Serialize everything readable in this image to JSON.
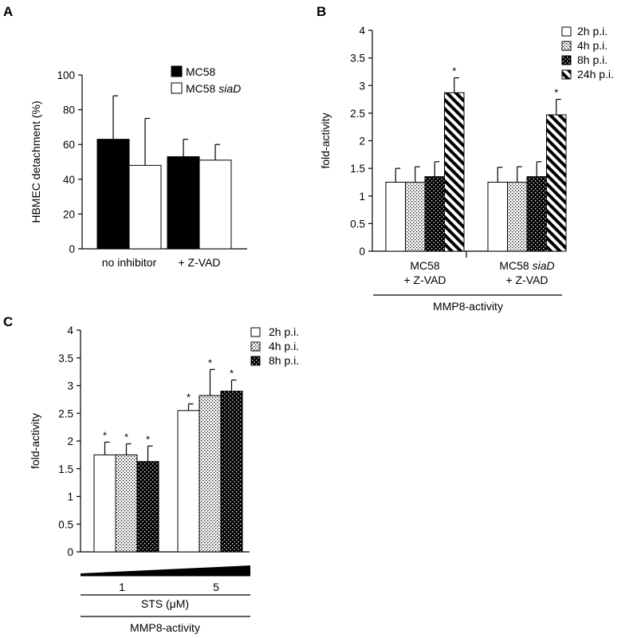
{
  "chart_data": [
    {
      "panel": "A",
      "type": "bar",
      "ylabel": "HBMEC detachment (%)",
      "ylim": [
        0,
        100
      ],
      "yticks": [
        0,
        20,
        40,
        60,
        80,
        100
      ],
      "categories": [
        "no inhibitor",
        "+ Z-VAD"
      ],
      "series": [
        {
          "name": "MC58",
          "legend_parts": [
            {
              "t": "MC58",
              "i": false
            }
          ],
          "fill": "black",
          "values": [
            63,
            53
          ],
          "errors": [
            25,
            10
          ]
        },
        {
          "name": "MC58 siaD",
          "legend_parts": [
            {
              "t": "MC58 ",
              "i": false
            },
            {
              "t": "siaD",
              "i": true
            }
          ],
          "fill": "white",
          "values": [
            48,
            51
          ],
          "errors": [
            27,
            9
          ]
        }
      ],
      "legend_position": "top-right"
    },
    {
      "panel": "B",
      "type": "bar",
      "ylabel": "fold-activity",
      "ylim": [
        0,
        4
      ],
      "yticks": [
        "0",
        "0.5",
        "1",
        "1.5",
        "2",
        "2.5",
        "3",
        "3.5",
        "4"
      ],
      "categories": [
        {
          "lines": [
            [
              {
                "t": "MC58",
                "i": false
              }
            ],
            [
              {
                "t": "+ Z-VAD",
                "i": false
              }
            ]
          ]
        },
        {
          "lines": [
            [
              {
                "t": "MC58 ",
                "i": false
              },
              {
                "t": "siaD",
                "i": true
              }
            ],
            [
              {
                "t": "+ Z-VAD",
                "i": false
              }
            ]
          ]
        }
      ],
      "category_names": [
        "MC58 + Z-VAD",
        "MC58 siaD + Z-VAD"
      ],
      "footer": "MMP8-activity",
      "series": [
        {
          "name": "2h p.i.",
          "fill": "white",
          "values": [
            1.25,
            1.25
          ],
          "errors": [
            0.25,
            0.27
          ],
          "stars": [
            false,
            false
          ]
        },
        {
          "name": "4h p.i.",
          "fill": "dots-light",
          "values": [
            1.25,
            1.25
          ],
          "errors": [
            0.28,
            0.28
          ],
          "stars": [
            false,
            false
          ]
        },
        {
          "name": "8h p.i.",
          "fill": "dots-dark",
          "values": [
            1.35,
            1.35
          ],
          "errors": [
            0.27,
            0.27
          ],
          "stars": [
            false,
            false
          ]
        },
        {
          "name": "24h p.i.",
          "fill": "stripes",
          "values": [
            2.87,
            2.47
          ],
          "errors": [
            0.27,
            0.28
          ],
          "stars": [
            true,
            true
          ]
        }
      ],
      "star_label": "*",
      "legend_position": "top-right"
    },
    {
      "panel": "C",
      "type": "bar",
      "ylabel": "fold-activity",
      "ylim": [
        0,
        4
      ],
      "yticks": [
        "0",
        "0.5",
        "1",
        "1.5",
        "2",
        "2.5",
        "3",
        "3.5",
        "4"
      ],
      "categories": [
        "1",
        "5"
      ],
      "xlabel": "STS (μM)",
      "footer": "MMP8-activity",
      "series": [
        {
          "name": "2h p.i.",
          "fill": "white",
          "values": [
            1.75,
            2.55
          ],
          "errors": [
            0.23,
            0.12
          ],
          "stars": [
            true,
            true
          ]
        },
        {
          "name": "4h p.i.",
          "fill": "dots-light",
          "values": [
            1.75,
            2.82
          ],
          "errors": [
            0.2,
            0.47
          ],
          "stars": [
            true,
            true
          ]
        },
        {
          "name": "8h p.i.",
          "fill": "dots-dark",
          "values": [
            1.63,
            2.9
          ],
          "errors": [
            0.28,
            0.2
          ],
          "stars": [
            true,
            true
          ]
        }
      ],
      "star_label": "*",
      "legend_position": "top-right"
    }
  ]
}
